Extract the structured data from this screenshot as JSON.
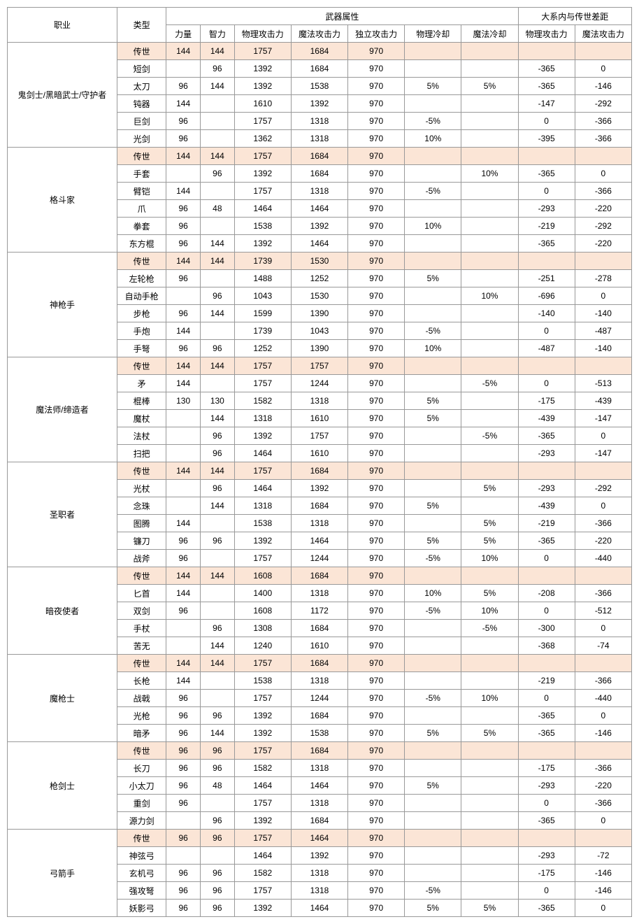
{
  "headers": {
    "profession": "职业",
    "type": "类型",
    "weapon_attr": "武器属性",
    "gap": "大系内与传世差距",
    "str": "力量",
    "int": "智力",
    "patk": "物理攻击力",
    "matk": "魔法攻击力",
    "iatk": "独立攻击力",
    "pcd": "物理冷却",
    "mcd": "魔法冷却",
    "gap_patk": "物理攻击力",
    "gap_matk": "魔法攻击力"
  },
  "colors": {
    "highlight": "#fbe5d6",
    "border": "#999999",
    "bg": "#ffffff",
    "text": "#000000"
  },
  "groups": [
    {
      "profession": "鬼剑士/黑暗武士/守护者",
      "rows": [
        {
          "type": "传世",
          "str": "144",
          "int": "144",
          "patk": "1757",
          "matk": "1684",
          "iatk": "970",
          "pcd": "",
          "mcd": "",
          "gp": "",
          "gm": "",
          "hl": true
        },
        {
          "type": "短剑",
          "str": "",
          "int": "96",
          "patk": "1392",
          "matk": "1684",
          "iatk": "970",
          "pcd": "",
          "mcd": "",
          "gp": "-365",
          "gm": "0"
        },
        {
          "type": "太刀",
          "str": "96",
          "int": "144",
          "patk": "1392",
          "matk": "1538",
          "iatk": "970",
          "pcd": "5%",
          "mcd": "5%",
          "gp": "-365",
          "gm": "-146"
        },
        {
          "type": "钝器",
          "str": "144",
          "int": "",
          "patk": "1610",
          "matk": "1392",
          "iatk": "970",
          "pcd": "",
          "mcd": "",
          "gp": "-147",
          "gm": "-292"
        },
        {
          "type": "巨剑",
          "str": "96",
          "int": "",
          "patk": "1757",
          "matk": "1318",
          "iatk": "970",
          "pcd": "-5%",
          "mcd": "",
          "gp": "0",
          "gm": "-366"
        },
        {
          "type": "光剑",
          "str": "96",
          "int": "",
          "patk": "1362",
          "matk": "1318",
          "iatk": "970",
          "pcd": "10%",
          "mcd": "",
          "gp": "-395",
          "gm": "-366"
        }
      ]
    },
    {
      "profession": "格斗家",
      "rows": [
        {
          "type": "传世",
          "str": "144",
          "int": "144",
          "patk": "1757",
          "matk": "1684",
          "iatk": "970",
          "pcd": "",
          "mcd": "",
          "gp": "",
          "gm": "",
          "hl": true
        },
        {
          "type": "手套",
          "str": "",
          "int": "96",
          "patk": "1392",
          "matk": "1684",
          "iatk": "970",
          "pcd": "",
          "mcd": "10%",
          "gp": "-365",
          "gm": "0"
        },
        {
          "type": "臂铠",
          "str": "144",
          "int": "",
          "patk": "1757",
          "matk": "1318",
          "iatk": "970",
          "pcd": "-5%",
          "mcd": "",
          "gp": "0",
          "gm": "-366"
        },
        {
          "type": "爪",
          "str": "96",
          "int": "48",
          "patk": "1464",
          "matk": "1464",
          "iatk": "970",
          "pcd": "",
          "mcd": "",
          "gp": "-293",
          "gm": "-220"
        },
        {
          "type": "拳套",
          "str": "96",
          "int": "",
          "patk": "1538",
          "matk": "1392",
          "iatk": "970",
          "pcd": "10%",
          "mcd": "",
          "gp": "-219",
          "gm": "-292"
        },
        {
          "type": "东方棍",
          "str": "96",
          "int": "144",
          "patk": "1392",
          "matk": "1464",
          "iatk": "970",
          "pcd": "",
          "mcd": "",
          "gp": "-365",
          "gm": "-220"
        }
      ]
    },
    {
      "profession": "神枪手",
      "rows": [
        {
          "type": "传世",
          "str": "144",
          "int": "144",
          "patk": "1739",
          "matk": "1530",
          "iatk": "970",
          "pcd": "",
          "mcd": "",
          "gp": "",
          "gm": "",
          "hl": true
        },
        {
          "type": "左轮枪",
          "str": "96",
          "int": "",
          "patk": "1488",
          "matk": "1252",
          "iatk": "970",
          "pcd": "5%",
          "mcd": "",
          "gp": "-251",
          "gm": "-278"
        },
        {
          "type": "自动手枪",
          "str": "",
          "int": "96",
          "patk": "1043",
          "matk": "1530",
          "iatk": "970",
          "pcd": "",
          "mcd": "10%",
          "gp": "-696",
          "gm": "0"
        },
        {
          "type": "步枪",
          "str": "96",
          "int": "144",
          "patk": "1599",
          "matk": "1390",
          "iatk": "970",
          "pcd": "",
          "mcd": "",
          "gp": "-140",
          "gm": "-140"
        },
        {
          "type": "手炮",
          "str": "144",
          "int": "",
          "patk": "1739",
          "matk": "1043",
          "iatk": "970",
          "pcd": "-5%",
          "mcd": "",
          "gp": "0",
          "gm": "-487"
        },
        {
          "type": "手弩",
          "str": "96",
          "int": "96",
          "patk": "1252",
          "matk": "1390",
          "iatk": "970",
          "pcd": "10%",
          "mcd": "",
          "gp": "-487",
          "gm": "-140"
        }
      ]
    },
    {
      "profession": "魔法师/缔造者",
      "rows": [
        {
          "type": "传世",
          "str": "144",
          "int": "144",
          "patk": "1757",
          "matk": "1757",
          "iatk": "970",
          "pcd": "",
          "mcd": "",
          "gp": "",
          "gm": "",
          "hl": true
        },
        {
          "type": "矛",
          "str": "144",
          "int": "",
          "patk": "1757",
          "matk": "1244",
          "iatk": "970",
          "pcd": "",
          "mcd": "-5%",
          "gp": "0",
          "gm": "-513"
        },
        {
          "type": "棍棒",
          "str": "130",
          "int": "130",
          "patk": "1582",
          "matk": "1318",
          "iatk": "970",
          "pcd": "5%",
          "mcd": "",
          "gp": "-175",
          "gm": "-439"
        },
        {
          "type": "魔杖",
          "str": "",
          "int": "144",
          "patk": "1318",
          "matk": "1610",
          "iatk": "970",
          "pcd": "5%",
          "mcd": "",
          "gp": "-439",
          "gm": "-147"
        },
        {
          "type": "法杖",
          "str": "",
          "int": "96",
          "patk": "1392",
          "matk": "1757",
          "iatk": "970",
          "pcd": "",
          "mcd": "-5%",
          "gp": "-365",
          "gm": "0"
        },
        {
          "type": "扫把",
          "str": "",
          "int": "96",
          "patk": "1464",
          "matk": "1610",
          "iatk": "970",
          "pcd": "",
          "mcd": "",
          "gp": "-293",
          "gm": "-147"
        }
      ]
    },
    {
      "profession": "圣职者",
      "rows": [
        {
          "type": "传世",
          "str": "144",
          "int": "144",
          "patk": "1757",
          "matk": "1684",
          "iatk": "970",
          "pcd": "",
          "mcd": "",
          "gp": "",
          "gm": "",
          "hl": true
        },
        {
          "type": "光杖",
          "str": "",
          "int": "96",
          "patk": "1464",
          "matk": "1392",
          "iatk": "970",
          "pcd": "",
          "mcd": "5%",
          "gp": "-293",
          "gm": "-292"
        },
        {
          "type": "念珠",
          "str": "",
          "int": "144",
          "patk": "1318",
          "matk": "1684",
          "iatk": "970",
          "pcd": "5%",
          "mcd": "",
          "gp": "-439",
          "gm": "0"
        },
        {
          "type": "图腾",
          "str": "144",
          "int": "",
          "patk": "1538",
          "matk": "1318",
          "iatk": "970",
          "pcd": "",
          "mcd": "5%",
          "gp": "-219",
          "gm": "-366"
        },
        {
          "type": "镰刀",
          "str": "96",
          "int": "96",
          "patk": "1392",
          "matk": "1464",
          "iatk": "970",
          "pcd": "5%",
          "mcd": "5%",
          "gp": "-365",
          "gm": "-220"
        },
        {
          "type": "战斧",
          "str": "96",
          "int": "",
          "patk": "1757",
          "matk": "1244",
          "iatk": "970",
          "pcd": "-5%",
          "mcd": "10%",
          "gp": "0",
          "gm": "-440"
        }
      ]
    },
    {
      "profession": "暗夜使者",
      "rows": [
        {
          "type": "传世",
          "str": "144",
          "int": "144",
          "patk": "1608",
          "matk": "1684",
          "iatk": "970",
          "pcd": "",
          "mcd": "",
          "gp": "",
          "gm": "",
          "hl": true
        },
        {
          "type": "匕首",
          "str": "144",
          "int": "",
          "patk": "1400",
          "matk": "1318",
          "iatk": "970",
          "pcd": "10%",
          "mcd": "5%",
          "gp": "-208",
          "gm": "-366"
        },
        {
          "type": "双剑",
          "str": "96",
          "int": "",
          "patk": "1608",
          "matk": "1172",
          "iatk": "970",
          "pcd": "-5%",
          "mcd": "10%",
          "gp": "0",
          "gm": "-512"
        },
        {
          "type": "手杖",
          "str": "",
          "int": "96",
          "patk": "1308",
          "matk": "1684",
          "iatk": "970",
          "pcd": "",
          "mcd": "-5%",
          "gp": "-300",
          "gm": "0"
        },
        {
          "type": "苦无",
          "str": "",
          "int": "144",
          "patk": "1240",
          "matk": "1610",
          "iatk": "970",
          "pcd": "",
          "mcd": "",
          "gp": "-368",
          "gm": "-74"
        }
      ]
    },
    {
      "profession": "魔枪士",
      "rows": [
        {
          "type": "传世",
          "str": "144",
          "int": "144",
          "patk": "1757",
          "matk": "1684",
          "iatk": "970",
          "pcd": "",
          "mcd": "",
          "gp": "",
          "gm": "",
          "hl": true
        },
        {
          "type": "长枪",
          "str": "144",
          "int": "",
          "patk": "1538",
          "matk": "1318",
          "iatk": "970",
          "pcd": "",
          "mcd": "",
          "gp": "-219",
          "gm": "-366"
        },
        {
          "type": "战戟",
          "str": "96",
          "int": "",
          "patk": "1757",
          "matk": "1244",
          "iatk": "970",
          "pcd": "-5%",
          "mcd": "10%",
          "gp": "0",
          "gm": "-440"
        },
        {
          "type": "光枪",
          "str": "96",
          "int": "96",
          "patk": "1392",
          "matk": "1684",
          "iatk": "970",
          "pcd": "",
          "mcd": "",
          "gp": "-365",
          "gm": "0"
        },
        {
          "type": "暗矛",
          "str": "96",
          "int": "144",
          "patk": "1392",
          "matk": "1538",
          "iatk": "970",
          "pcd": "5%",
          "mcd": "5%",
          "gp": "-365",
          "gm": "-146"
        }
      ]
    },
    {
      "profession": "枪剑士",
      "rows": [
        {
          "type": "传世",
          "str": "96",
          "int": "96",
          "patk": "1757",
          "matk": "1684",
          "iatk": "970",
          "pcd": "",
          "mcd": "",
          "gp": "",
          "gm": "",
          "hl": true
        },
        {
          "type": "长刀",
          "str": "96",
          "int": "96",
          "patk": "1582",
          "matk": "1318",
          "iatk": "970",
          "pcd": "",
          "mcd": "",
          "gp": "-175",
          "gm": "-366"
        },
        {
          "type": "小太刀",
          "str": "96",
          "int": "48",
          "patk": "1464",
          "matk": "1464",
          "iatk": "970",
          "pcd": "5%",
          "mcd": "",
          "gp": "-293",
          "gm": "-220"
        },
        {
          "type": "重剑",
          "str": "96",
          "int": "",
          "patk": "1757",
          "matk": "1318",
          "iatk": "970",
          "pcd": "",
          "mcd": "",
          "gp": "0",
          "gm": "-366"
        },
        {
          "type": "源力剑",
          "str": "",
          "int": "96",
          "patk": "1392",
          "matk": "1684",
          "iatk": "970",
          "pcd": "",
          "mcd": "",
          "gp": "-365",
          "gm": "0"
        }
      ]
    },
    {
      "profession": "弓箭手",
      "rows": [
        {
          "type": "传世",
          "str": "96",
          "int": "96",
          "patk": "1757",
          "matk": "1464",
          "iatk": "970",
          "pcd": "",
          "mcd": "",
          "gp": "",
          "gm": "",
          "hl": true
        },
        {
          "type": "神弦弓",
          "str": "",
          "int": "",
          "patk": "1464",
          "matk": "1392",
          "iatk": "970",
          "pcd": "",
          "mcd": "",
          "gp": "-293",
          "gm": "-72"
        },
        {
          "type": "玄机弓",
          "str": "96",
          "int": "96",
          "patk": "1582",
          "matk": "1318",
          "iatk": "970",
          "pcd": "",
          "mcd": "",
          "gp": "-175",
          "gm": "-146"
        },
        {
          "type": "强攻弩",
          "str": "96",
          "int": "96",
          "patk": "1757",
          "matk": "1318",
          "iatk": "970",
          "pcd": "-5%",
          "mcd": "",
          "gp": "0",
          "gm": "-146"
        },
        {
          "type": "妖影弓",
          "str": "96",
          "int": "96",
          "patk": "1392",
          "matk": "1464",
          "iatk": "970",
          "pcd": "5%",
          "mcd": "5%",
          "gp": "-365",
          "gm": "0"
        }
      ]
    }
  ]
}
